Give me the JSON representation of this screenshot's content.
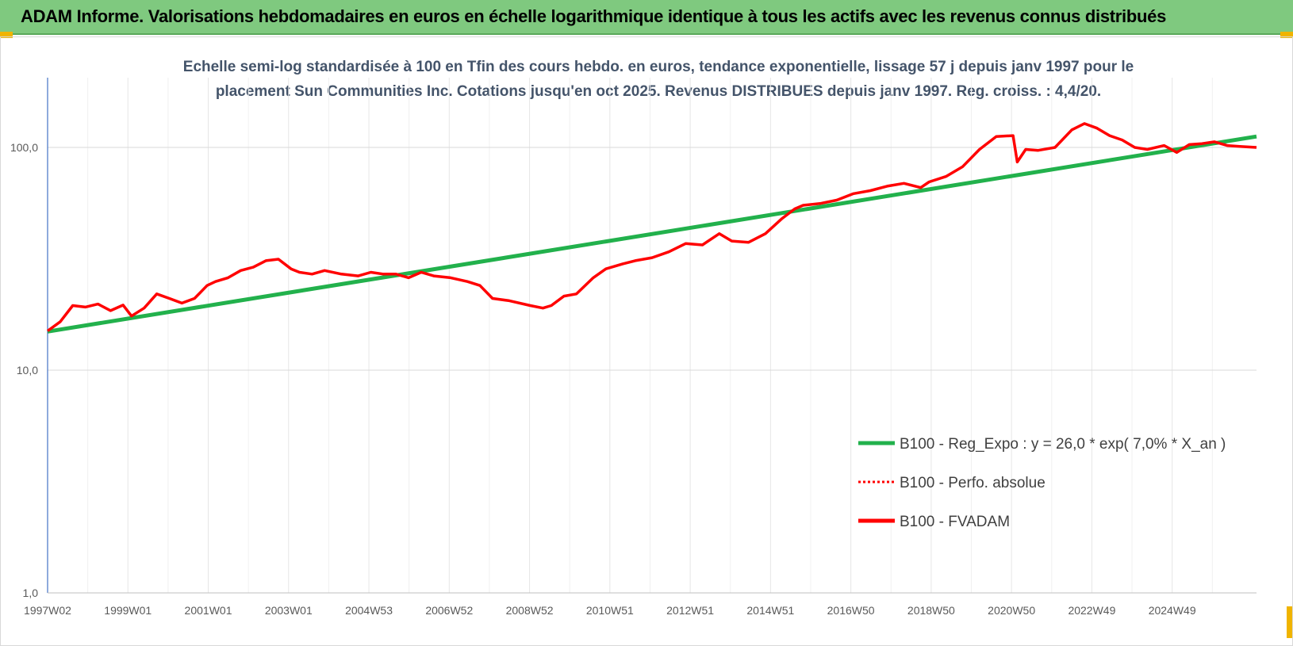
{
  "banner": {
    "title": "ADAM Informe. Valorisations hebdomadaires en euros en échelle logarithmique identique à tous les actifs avec les revenus connus distribués",
    "color": "#7fc97f"
  },
  "chart_data": {
    "type": "line",
    "title_line1": "Echelle semi-log standardisée à 100 en Tfin des cours hebdo. en euros, tendance exponentielle, lissage 57 j depuis janv 1997 pour le",
    "title_line2": "placement Sun Communities Inc. Cotations jusqu'en oct 2025. Revenus DISTRIBUES depuis janv 1997. Reg. croiss. : 4,4/20.",
    "y_scale": "log",
    "ylim": [
      1,
      200
    ],
    "y_ticks": [
      "1,0",
      "10,0",
      "100,0"
    ],
    "y_tick_values": [
      1,
      10,
      100
    ],
    "x_tick_labels": [
      "1997W02",
      "1999W01",
      "2001W01",
      "2003W01",
      "2004W53",
      "2006W52",
      "2008W52",
      "2010W51",
      "2012W51",
      "2014W51",
      "2016W50",
      "2018W50",
      "2020W50",
      "2022W49",
      "2024W49"
    ],
    "xlim": [
      1997.0,
      2025.8
    ],
    "grid": "vertical-and-horizontal",
    "legend_position": "bottom-right",
    "series": [
      {
        "name": "B100 - Reg_Expo : y = 26,0 * exp( 7,0% *  X_an )",
        "color": "#22b14c",
        "style": "solid",
        "x": [
          1997.0,
          2025.8
        ],
        "values": [
          14.9,
          112
        ]
      },
      {
        "name": "B100 - Perfo. absolue",
        "color": "#ff0000",
        "style": "dotted",
        "x": [],
        "values": []
      },
      {
        "name": "B100 - FVADAM",
        "color": "#ff0000",
        "style": "solid",
        "x": [
          1997.0,
          1997.3,
          1997.6,
          1997.9,
          1998.2,
          1998.5,
          1998.8,
          1999.0,
          1999.3,
          1999.6,
          1999.9,
          2000.2,
          2000.5,
          2000.8,
          2001.0,
          2001.3,
          2001.6,
          2001.9,
          2002.2,
          2002.5,
          2002.8,
          2003.0,
          2003.3,
          2003.6,
          2004.0,
          2004.4,
          2004.7,
          2005.0,
          2005.3,
          2005.6,
          2005.9,
          2006.2,
          2006.6,
          2007.0,
          2007.3,
          2007.6,
          2008.0,
          2008.5,
          2008.8,
          2009.0,
          2009.3,
          2009.6,
          2010.0,
          2010.3,
          2010.7,
          2011.0,
          2011.4,
          2011.8,
          2012.2,
          2012.6,
          2013.0,
          2013.3,
          2013.7,
          2014.1,
          2014.5,
          2014.8,
          2015.0,
          2015.4,
          2015.8,
          2016.2,
          2016.6,
          2017.0,
          2017.4,
          2017.8,
          2018.0,
          2018.4,
          2018.8,
          2019.2,
          2019.6,
          2020.0,
          2020.1,
          2020.3,
          2020.6,
          2021.0,
          2021.4,
          2021.7,
          2022.0,
          2022.3,
          2022.6,
          2022.9,
          2023.2,
          2023.6,
          2023.9,
          2024.2,
          2024.5,
          2024.8,
          2025.1,
          2025.4,
          2025.8
        ],
        "values": [
          15,
          16.5,
          19.5,
          19.2,
          19.8,
          18.5,
          19.6,
          17.5,
          19,
          22,
          21,
          20,
          21,
          24,
          25,
          26,
          28,
          29,
          31,
          31.5,
          28.5,
          27.5,
          27,
          28,
          27,
          26.5,
          27.5,
          27,
          27,
          26,
          27.5,
          26.5,
          26,
          25,
          24,
          21,
          20.5,
          19.5,
          19,
          19.5,
          21.5,
          22,
          26,
          28.5,
          30,
          31,
          32,
          34,
          37,
          36.5,
          41,
          38,
          37.5,
          41,
          48,
          53,
          55,
          56,
          58,
          62,
          64,
          67,
          69,
          66,
          70,
          74,
          82,
          98,
          112,
          113,
          86,
          98,
          97,
          100,
          120,
          128,
          122,
          113,
          108,
          100,
          98,
          102,
          95,
          103,
          104,
          106,
          102,
          101,
          100
        ]
      }
    ]
  }
}
